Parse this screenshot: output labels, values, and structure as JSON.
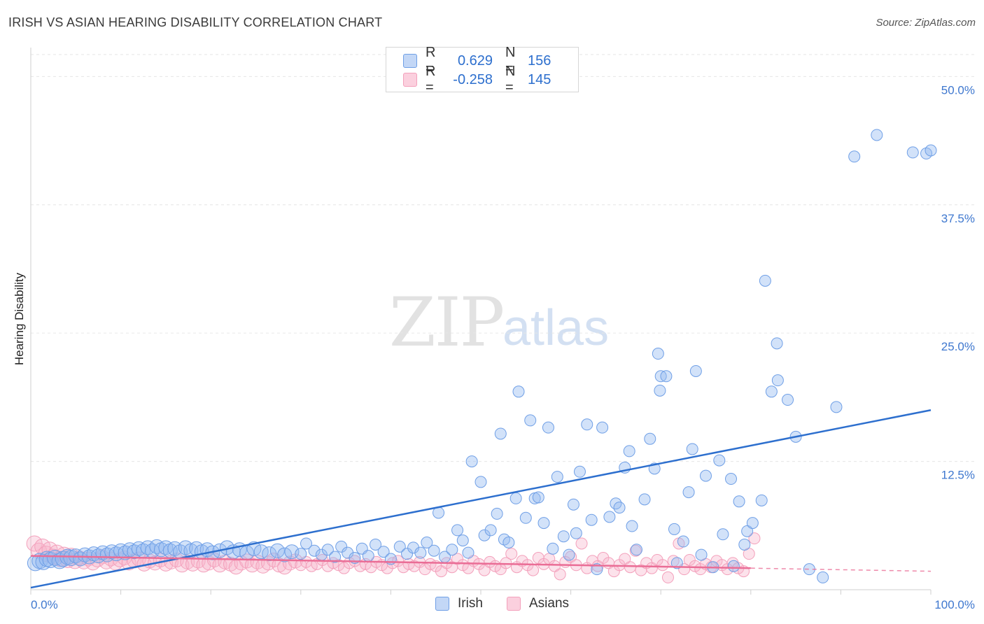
{
  "title": "IRISH VS ASIAN HEARING DISABILITY CORRELATION CHART",
  "source": "Source: ZipAtlas.com",
  "watermark": {
    "zip": "ZIP",
    "atlas": "atlas"
  },
  "legend_top": [
    {
      "r_label": "R =",
      "r_value": "0.629",
      "n_label": "N =",
      "n_value": "156"
    },
    {
      "r_label": "R =",
      "r_value": "-0.258",
      "n_label": "N =",
      "n_value": "145"
    }
  ],
  "chart_data": {
    "type": "scatter",
    "title": "IRISH VS ASIAN HEARING DISABILITY CORRELATION CHART",
    "xlabel": "",
    "ylabel": "Hearing Disability",
    "xlim": [
      0,
      100
    ],
    "ylim": [
      0,
      52
    ],
    "x_tick_labels": [
      "0.0%",
      "100.0%"
    ],
    "y_ticks": [
      12.5,
      25.0,
      37.5,
      50.0
    ],
    "y_tick_labels": [
      "12.5%",
      "25.0%",
      "37.5%",
      "50.0%"
    ],
    "grid": true,
    "legend_position": "top-center",
    "colors": {
      "irish": "#6f9fe6",
      "asians": "#f3a0bb",
      "irish_line": "#2d6fce",
      "asians_line": "#ea6d96"
    },
    "series": [
      {
        "name": "Irish",
        "trend": {
          "x": [
            0,
            100
          ],
          "y": [
            0.2,
            17.5
          ]
        },
        "points": [
          [
            0.5,
            2.6
          ],
          [
            1.0,
            2.8
          ],
          [
            1.4,
            2.7
          ],
          [
            1.8,
            3.0
          ],
          [
            2.2,
            2.9
          ],
          [
            2.7,
            3.1
          ],
          [
            3.2,
            2.8
          ],
          [
            3.6,
            3.0
          ],
          [
            4.1,
            3.2
          ],
          [
            4.5,
            3.1
          ],
          [
            5.0,
            3.3
          ],
          [
            5.5,
            3.0
          ],
          [
            6.0,
            3.4
          ],
          [
            6.5,
            3.2
          ],
          [
            7.0,
            3.5
          ],
          [
            7.5,
            3.3
          ],
          [
            8.0,
            3.6
          ],
          [
            8.5,
            3.4
          ],
          [
            9.0,
            3.7
          ],
          [
            9.5,
            3.5
          ],
          [
            10.0,
            3.8
          ],
          [
            10.5,
            3.6
          ],
          [
            11.0,
            3.9
          ],
          [
            11.5,
            3.7
          ],
          [
            12.0,
            4.0
          ],
          [
            12.5,
            3.8
          ],
          [
            13.0,
            4.1
          ],
          [
            13.5,
            3.8
          ],
          [
            14.0,
            4.2
          ],
          [
            14.5,
            3.9
          ],
          [
            15.0,
            4.1
          ],
          [
            15.5,
            3.8
          ],
          [
            16.0,
            4.0
          ],
          [
            16.6,
            3.7
          ],
          [
            17.2,
            4.1
          ],
          [
            17.8,
            3.8
          ],
          [
            18.4,
            4.0
          ],
          [
            19.0,
            3.7
          ],
          [
            19.6,
            3.9
          ],
          [
            20.2,
            3.6
          ],
          [
            21.0,
            3.8
          ],
          [
            21.8,
            4.1
          ],
          [
            22.5,
            3.7
          ],
          [
            23.2,
            3.9
          ],
          [
            24.0,
            3.6
          ],
          [
            24.8,
            4.0
          ],
          [
            25.6,
            3.7
          ],
          [
            26.5,
            3.5
          ],
          [
            27.4,
            3.8
          ],
          [
            28.2,
            3.4
          ],
          [
            29.0,
            3.7
          ],
          [
            30.0,
            3.5
          ],
          [
            30.6,
            4.5
          ],
          [
            31.5,
            3.8
          ],
          [
            32.3,
            3.4
          ],
          [
            33.0,
            3.9
          ],
          [
            33.8,
            3.2
          ],
          [
            34.5,
            4.2
          ],
          [
            35.2,
            3.6
          ],
          [
            36.0,
            3.1
          ],
          [
            36.8,
            4.0
          ],
          [
            37.5,
            3.3
          ],
          [
            38.3,
            4.4
          ],
          [
            39.2,
            3.7
          ],
          [
            40.0,
            3.0
          ],
          [
            41.0,
            4.2
          ],
          [
            41.8,
            3.5
          ],
          [
            42.5,
            4.1
          ],
          [
            43.3,
            3.6
          ],
          [
            44.0,
            4.6
          ],
          [
            44.8,
            3.8
          ],
          [
            45.3,
            7.5
          ],
          [
            46.0,
            3.2
          ],
          [
            46.8,
            3.9
          ],
          [
            47.4,
            5.8
          ],
          [
            48.0,
            4.8
          ],
          [
            48.6,
            3.6
          ],
          [
            49.0,
            12.5
          ],
          [
            50.0,
            10.5
          ],
          [
            50.4,
            5.3
          ],
          [
            51.1,
            5.8
          ],
          [
            51.8,
            7.4
          ],
          [
            52.2,
            15.2
          ],
          [
            52.6,
            4.9
          ],
          [
            53.1,
            4.6
          ],
          [
            53.9,
            8.9
          ],
          [
            54.2,
            19.3
          ],
          [
            55.0,
            7.0
          ],
          [
            55.5,
            16.5
          ],
          [
            56.0,
            8.9
          ],
          [
            56.4,
            9.0
          ],
          [
            57.0,
            6.5
          ],
          [
            57.5,
            15.8
          ],
          [
            58.0,
            4.0
          ],
          [
            58.5,
            11.0
          ],
          [
            59.2,
            5.2
          ],
          [
            59.8,
            3.4
          ],
          [
            60.3,
            8.3
          ],
          [
            60.6,
            5.5
          ],
          [
            61.0,
            11.5
          ],
          [
            61.8,
            16.1
          ],
          [
            62.3,
            6.8
          ],
          [
            62.9,
            2.0
          ],
          [
            63.5,
            15.8
          ],
          [
            64.3,
            7.1
          ],
          [
            65.0,
            8.4
          ],
          [
            65.4,
            8.0
          ],
          [
            66.0,
            11.9
          ],
          [
            66.5,
            13.5
          ],
          [
            66.8,
            6.2
          ],
          [
            67.3,
            3.9
          ],
          [
            68.2,
            8.8
          ],
          [
            68.8,
            14.7
          ],
          [
            69.3,
            11.8
          ],
          [
            69.7,
            23.0
          ],
          [
            69.9,
            19.4
          ],
          [
            70.0,
            20.8
          ],
          [
            70.6,
            20.8
          ],
          [
            71.5,
            5.9
          ],
          [
            71.8,
            2.6
          ],
          [
            72.5,
            4.7
          ],
          [
            73.1,
            9.5
          ],
          [
            73.5,
            13.7
          ],
          [
            73.9,
            21.3
          ],
          [
            74.5,
            3.4
          ],
          [
            75.0,
            11.1
          ],
          [
            75.8,
            2.2
          ],
          [
            76.5,
            12.6
          ],
          [
            76.9,
            5.4
          ],
          [
            77.8,
            10.8
          ],
          [
            78.1,
            2.3
          ],
          [
            78.7,
            8.6
          ],
          [
            79.3,
            4.4
          ],
          [
            79.6,
            5.7
          ],
          [
            80.2,
            6.5
          ],
          [
            81.2,
            8.7
          ],
          [
            81.6,
            30.1
          ],
          [
            82.3,
            19.3
          ],
          [
            82.9,
            24.0
          ],
          [
            83.0,
            20.4
          ],
          [
            84.1,
            18.5
          ],
          [
            85.0,
            14.9
          ],
          [
            86.5,
            2.0
          ],
          [
            88.0,
            1.2
          ],
          [
            89.5,
            17.8
          ],
          [
            91.5,
            42.2
          ],
          [
            94.0,
            44.3
          ],
          [
            98.0,
            42.6
          ],
          [
            99.5,
            42.5
          ],
          [
            100.0,
            42.8
          ]
        ]
      },
      {
        "name": "Asians",
        "trend": {
          "x": [
            0,
            80
          ],
          "y": [
            3.3,
            2.1
          ]
        },
        "trend_dashed": {
          "x": [
            80,
            100
          ],
          "y": [
            2.1,
            1.8
          ]
        },
        "points": [
          [
            0.4,
            4.5
          ],
          [
            0.9,
            3.8
          ],
          [
            1.3,
            4.2
          ],
          [
            1.7,
            3.5
          ],
          [
            2.1,
            3.9
          ],
          [
            2.5,
            3.2
          ],
          [
            2.9,
            3.6
          ],
          [
            3.3,
            3.0
          ],
          [
            3.7,
            3.4
          ],
          [
            4.1,
            2.9
          ],
          [
            4.5,
            3.3
          ],
          [
            4.9,
            2.8
          ],
          [
            5.4,
            3.1
          ],
          [
            5.9,
            2.7
          ],
          [
            6.4,
            3.0
          ],
          [
            6.9,
            2.6
          ],
          [
            7.4,
            2.9
          ],
          [
            7.9,
            3.2
          ],
          [
            8.4,
            2.7
          ],
          [
            8.9,
            3.0
          ],
          [
            9.4,
            2.6
          ],
          [
            9.9,
            2.9
          ],
          [
            10.4,
            3.1
          ],
          [
            10.9,
            2.6
          ],
          [
            11.5,
            2.8
          ],
          [
            12.0,
            3.0
          ],
          [
            12.6,
            2.5
          ],
          [
            13.2,
            2.8
          ],
          [
            13.8,
            2.6
          ],
          [
            14.4,
            2.9
          ],
          [
            15.0,
            2.5
          ],
          [
            15.6,
            2.7
          ],
          [
            16.2,
            2.9
          ],
          [
            16.8,
            2.4
          ],
          [
            17.4,
            2.7
          ],
          [
            18.0,
            2.5
          ],
          [
            18.6,
            2.8
          ],
          [
            19.2,
            2.4
          ],
          [
            19.8,
            2.6
          ],
          [
            20.4,
            2.9
          ],
          [
            21.0,
            2.4
          ],
          [
            21.6,
            2.7
          ],
          [
            22.2,
            2.5
          ],
          [
            22.8,
            2.2
          ],
          [
            23.4,
            2.6
          ],
          [
            24.0,
            2.8
          ],
          [
            24.6,
            2.4
          ],
          [
            25.2,
            2.7
          ],
          [
            25.8,
            2.3
          ],
          [
            26.4,
            2.6
          ],
          [
            27.0,
            2.9
          ],
          [
            27.6,
            2.4
          ],
          [
            28.2,
            2.2
          ],
          [
            28.8,
            2.6
          ],
          [
            29.4,
            2.8
          ],
          [
            30.0,
            2.4
          ],
          [
            30.6,
            2.7
          ],
          [
            31.2,
            2.3
          ],
          [
            31.8,
            2.5
          ],
          [
            32.4,
            2.9
          ],
          [
            33.0,
            2.3
          ],
          [
            33.6,
            2.6
          ],
          [
            34.2,
            2.4
          ],
          [
            34.8,
            2.1
          ],
          [
            35.4,
            2.6
          ],
          [
            36.0,
            2.8
          ],
          [
            36.6,
            2.3
          ],
          [
            37.2,
            2.5
          ],
          [
            37.8,
            2.2
          ],
          [
            38.4,
            2.7
          ],
          [
            39.0,
            2.4
          ],
          [
            39.6,
            2.1
          ],
          [
            40.2,
            2.6
          ],
          [
            40.8,
            2.8
          ],
          [
            41.4,
            2.2
          ],
          [
            42.0,
            2.5
          ],
          [
            42.6,
            2.3
          ],
          [
            43.2,
            2.7
          ],
          [
            43.8,
            2.0
          ],
          [
            44.4,
            2.5
          ],
          [
            45.0,
            2.3
          ],
          [
            45.6,
            1.8
          ],
          [
            46.2,
            2.6
          ],
          [
            46.8,
            2.2
          ],
          [
            47.4,
            3.0
          ],
          [
            48.0,
            2.4
          ],
          [
            48.6,
            2.1
          ],
          [
            49.2,
            2.8
          ],
          [
            49.8,
            2.5
          ],
          [
            50.4,
            1.9
          ],
          [
            51.0,
            2.7
          ],
          [
            51.6,
            2.3
          ],
          [
            52.2,
            2.0
          ],
          [
            52.8,
            2.6
          ],
          [
            53.4,
            3.5
          ],
          [
            54.0,
            2.2
          ],
          [
            54.6,
            2.8
          ],
          [
            55.2,
            2.4
          ],
          [
            55.8,
            1.9
          ],
          [
            56.4,
            3.1
          ],
          [
            57.0,
            2.5
          ],
          [
            57.6,
            3.0
          ],
          [
            58.2,
            2.3
          ],
          [
            58.8,
            1.5
          ],
          [
            59.4,
            2.7
          ],
          [
            60.0,
            3.2
          ],
          [
            60.6,
            2.4
          ],
          [
            61.2,
            4.5
          ],
          [
            61.8,
            2.1
          ],
          [
            62.4,
            2.8
          ],
          [
            63.0,
            2.3
          ],
          [
            63.6,
            3.1
          ],
          [
            64.2,
            2.6
          ],
          [
            64.8,
            1.8
          ],
          [
            65.4,
            2.4
          ],
          [
            66.0,
            3.0
          ],
          [
            66.6,
            2.2
          ],
          [
            67.2,
            3.8
          ],
          [
            67.8,
            1.9
          ],
          [
            68.4,
            2.6
          ],
          [
            69.0,
            2.1
          ],
          [
            69.6,
            2.9
          ],
          [
            70.2,
            2.4
          ],
          [
            70.8,
            1.2
          ],
          [
            71.4,
            2.8
          ],
          [
            72.0,
            4.5
          ],
          [
            72.6,
            2.0
          ],
          [
            73.2,
            2.9
          ],
          [
            73.8,
            2.3
          ],
          [
            74.4,
            2.0
          ],
          [
            75.0,
            2.5
          ],
          [
            75.6,
            2.2
          ],
          [
            76.2,
            2.8
          ],
          [
            76.8,
            2.4
          ],
          [
            77.4,
            2.0
          ],
          [
            78.0,
            2.6
          ],
          [
            78.6,
            2.1
          ],
          [
            79.2,
            1.8
          ],
          [
            79.8,
            3.5
          ],
          [
            80.4,
            5.0
          ]
        ]
      }
    ]
  },
  "legend_bottom": [
    "Irish",
    "Asians"
  ]
}
